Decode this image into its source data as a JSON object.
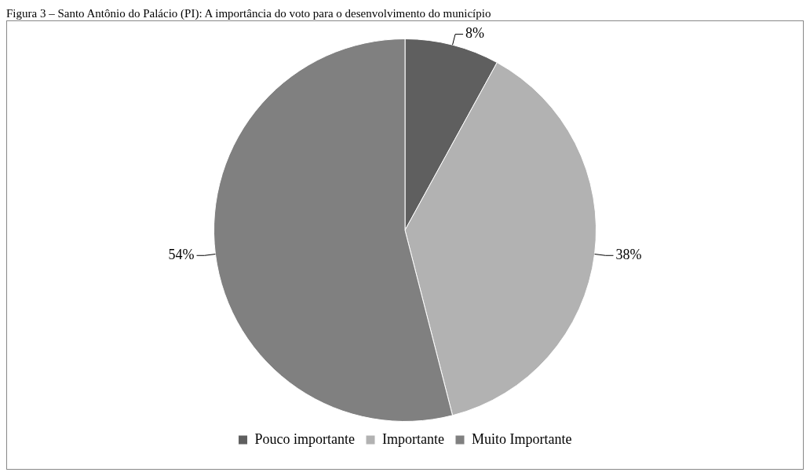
{
  "chart_data": {
    "type": "pie",
    "title": "Figura 3 – Santo Antônio do Palácio (PI): A importância do voto para o desenvolvimento do município",
    "categories": [
      "Pouco importante",
      "Importante",
      "Muito Importante"
    ],
    "values": [
      8,
      38,
      54
    ],
    "colors": [
      "#5f5f5f",
      "#b2b2b2",
      "#808080"
    ],
    "value_labels": [
      "8%",
      "38%",
      "54%"
    ],
    "legend": "bottom"
  }
}
